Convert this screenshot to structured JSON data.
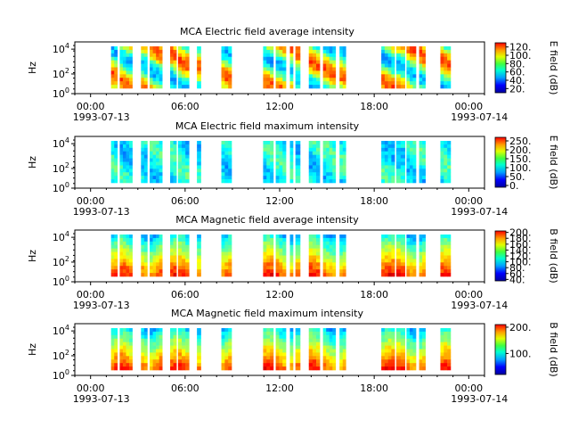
{
  "chart_data": [
    {
      "type": "heatmap",
      "title": "MCA  Electric field average intensity",
      "ylabel": "Hz",
      "yscale": "log",
      "ylim": [
        1,
        50000
      ],
      "y_ticks": [
        "10^0",
        "10^2",
        "10^4"
      ],
      "x_ticks": [
        "00:00",
        "06:00",
        "12:00",
        "18:00",
        "00:00"
      ],
      "x_dates": [
        "1993-07-13",
        "1993-07-14"
      ],
      "colorbar_label": "E field (dB)",
      "colorbar_ticks": [
        "20.",
        "40.",
        "60.",
        "80.",
        "100.",
        "120."
      ],
      "colorbar_range": [
        10,
        130
      ],
      "level": "high"
    },
    {
      "type": "heatmap",
      "title": "MCA  Electric field maximum intensity",
      "ylabel": "Hz",
      "yscale": "log",
      "ylim": [
        1,
        50000
      ],
      "y_ticks": [
        "10^0",
        "10^2",
        "10^4"
      ],
      "x_ticks": [
        "00:00",
        "06:00",
        "12:00",
        "18:00",
        "00:00"
      ],
      "x_dates": [
        "1993-07-13",
        "1993-07-14"
      ],
      "colorbar_label": "E field (dB)",
      "colorbar_ticks": [
        "0.",
        "50.",
        "100.",
        "150.",
        "200.",
        "250."
      ],
      "colorbar_range": [
        -10,
        270
      ],
      "level": "low"
    },
    {
      "type": "heatmap",
      "title": "MCA  Magnetic field average intensity",
      "ylabel": "Hz",
      "yscale": "log",
      "ylim": [
        1,
        50000
      ],
      "y_ticks": [
        "10^0",
        "10^2",
        "10^4"
      ],
      "x_ticks": [
        "00:00",
        "06:00",
        "12:00",
        "18:00",
        "00:00"
      ],
      "x_dates": [
        "1993-07-13",
        "1993-07-14"
      ],
      "colorbar_label": "B field (dB)",
      "colorbar_ticks": [
        "40.",
        "60.",
        "80.",
        "100.",
        "120.",
        "140.",
        "160.",
        "180.",
        "200."
      ],
      "colorbar_range": [
        35,
        205
      ],
      "level": "gradient"
    },
    {
      "type": "heatmap",
      "title": "MCA  Magnetic field maximum intensity",
      "ylabel": "Hz",
      "yscale": "log",
      "ylim": [
        1,
        50000
      ],
      "y_ticks": [
        "10^0",
        "10^2",
        "10^4"
      ],
      "x_ticks": [
        "00:00",
        "06:00",
        "12:00",
        "18:00",
        "00:00"
      ],
      "x_dates": [
        "1993-07-13",
        "1993-07-14"
      ],
      "colorbar_label": "B field (dB)",
      "colorbar_ticks": [
        "100.",
        "200."
      ],
      "colorbar_range": [
        20,
        210
      ],
      "level": "gradient"
    }
  ],
  "data_intervals_hours": [
    [
      1.3,
      1.7
    ],
    [
      1.85,
      2.65
    ],
    [
      3.2,
      3.6
    ],
    [
      3.75,
      4.55
    ],
    [
      5.05,
      5.45
    ],
    [
      5.55,
      6.25
    ],
    [
      6.75,
      7.0
    ],
    [
      8.3,
      8.95
    ],
    [
      10.95,
      11.6
    ],
    [
      11.75,
      12.4
    ],
    [
      12.65,
      12.85
    ],
    [
      13.0,
      13.3
    ],
    [
      13.85,
      14.55
    ],
    [
      14.75,
      15.55
    ],
    [
      15.8,
      16.2
    ],
    [
      18.45,
      19.3
    ],
    [
      19.4,
      19.95
    ],
    [
      20.05,
      20.65
    ],
    [
      20.85,
      21.25
    ],
    [
      22.2,
      22.85
    ]
  ]
}
